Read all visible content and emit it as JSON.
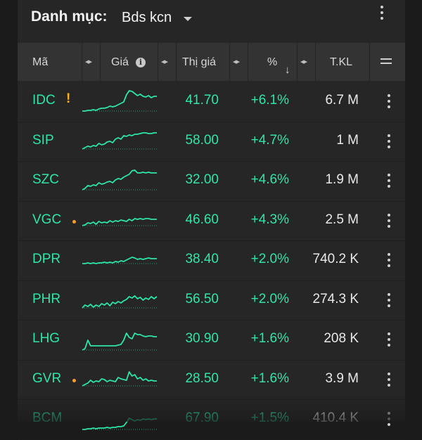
{
  "header": {
    "title": "Danh mục:",
    "watchlist": "Bds kcn"
  },
  "columns": {
    "symbol": "Mã",
    "price": "Giá",
    "market_price": "Thị giá",
    "percent": "%",
    "volume": "T.KL"
  },
  "icons": {
    "info": "info-icon",
    "sort": "sort-descending-icon",
    "menu": "hamburger-menu-icon",
    "more": "more-vertical-icon",
    "resize": "column-resize-icon"
  },
  "colors": {
    "up": "#2ee6a6",
    "warning": "#f3b12d",
    "background": "#262626",
    "header_bg": "#333333"
  },
  "rows": [
    {
      "symbol": "IDC",
      "flag": "!",
      "market_price": "41.70",
      "change": "+6.1%",
      "volume": "6.7 M",
      "spark": [
        5,
        5,
        6,
        6,
        7,
        6,
        8,
        9,
        9,
        10,
        12,
        11,
        12,
        14,
        16,
        18,
        28,
        34,
        33,
        30,
        27,
        29,
        26,
        25,
        27,
        24,
        26,
        26
      ]
    },
    {
      "symbol": "SIP",
      "flag": "",
      "market_price": "58.00",
      "change": "+4.7%",
      "volume": "1 M",
      "spark": [
        8,
        10,
        12,
        11,
        13,
        12,
        16,
        14,
        15,
        18,
        19,
        17,
        22,
        24,
        22,
        27,
        26,
        28,
        27,
        29,
        29,
        30,
        31,
        31,
        30,
        30,
        31,
        31
      ]
    },
    {
      "symbol": "SZC",
      "flag": "",
      "market_price": "32.00",
      "change": "+4.6%",
      "volume": "1.9 M",
      "spark": [
        6,
        8,
        12,
        11,
        13,
        12,
        16,
        14,
        15,
        17,
        18,
        16,
        20,
        22,
        21,
        24,
        26,
        28,
        33,
        34,
        30,
        30,
        31,
        30,
        31,
        30,
        30,
        30
      ]
    },
    {
      "symbol": "VGC",
      "flag": "dot",
      "market_price": "46.60",
      "change": "+4.3%",
      "volume": "2.5 M",
      "spark": [
        12,
        13,
        16,
        15,
        17,
        14,
        18,
        16,
        17,
        16,
        19,
        17,
        19,
        18,
        20,
        19,
        18,
        21,
        19,
        22,
        21,
        22,
        21,
        22,
        22,
        21,
        21,
        21
      ]
    },
    {
      "symbol": "DPR",
      "flag": "",
      "market_price": "38.40",
      "change": "+2.0%",
      "volume": "740.2 K",
      "spark": [
        14,
        14,
        15,
        14,
        15,
        14,
        15,
        15,
        16,
        15,
        16,
        15,
        17,
        16,
        18,
        17,
        19,
        21,
        23,
        22,
        20,
        21,
        20,
        21,
        22,
        21,
        21,
        21
      ]
    },
    {
      "symbol": "PHR",
      "flag": "",
      "market_price": "56.50",
      "change": "+2.0%",
      "volume": "274.3 K",
      "spark": [
        8,
        12,
        10,
        13,
        9,
        12,
        10,
        14,
        12,
        15,
        11,
        16,
        14,
        17,
        15,
        18,
        20,
        24,
        22,
        25,
        21,
        23,
        19,
        22,
        20,
        24,
        21,
        24
      ]
    },
    {
      "symbol": "LHG",
      "flag": "",
      "market_price": "30.90",
      "change": "+1.6%",
      "volume": "208 K",
      "spark": [
        4,
        6,
        18,
        10,
        10,
        10,
        10,
        10,
        10,
        10,
        10,
        10,
        10,
        11,
        12,
        18,
        28,
        22,
        20,
        28,
        26,
        26,
        24,
        23,
        24,
        24,
        23,
        23
      ]
    },
    {
      "symbol": "GVR",
      "flag": "dot",
      "market_price": "28.50",
      "change": "+1.6%",
      "volume": "3.9 M",
      "spark": [
        10,
        12,
        14,
        18,
        15,
        17,
        16,
        20,
        19,
        16,
        18,
        17,
        16,
        22,
        20,
        19,
        18,
        30,
        24,
        26,
        20,
        22,
        18,
        20,
        17,
        18,
        17,
        17
      ]
    },
    {
      "symbol": "BCM",
      "flag": "",
      "market_price": "67.90",
      "change": "+1.5%",
      "volume": "410.4 K",
      "spark": [
        4,
        4,
        5,
        5,
        6,
        5,
        6,
        6,
        6,
        7,
        6,
        7,
        7,
        8,
        8,
        9,
        14,
        20,
        18,
        16,
        18,
        17,
        19,
        18,
        19,
        18,
        19,
        19
      ]
    }
  ]
}
